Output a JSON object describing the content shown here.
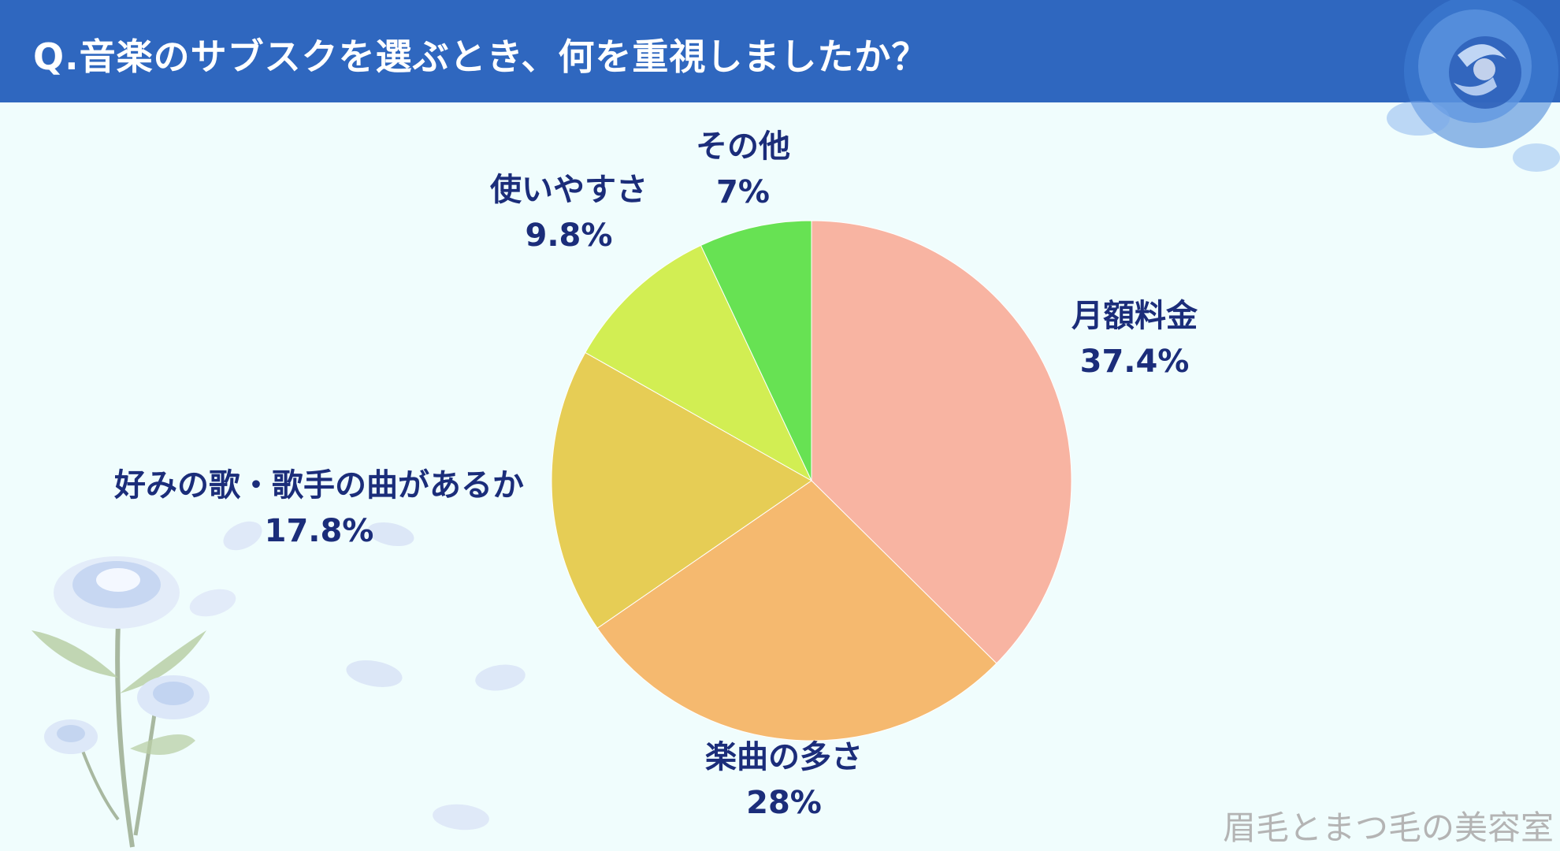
{
  "header": {
    "title": "Q.音楽のサブスクを選ぶとき、何を重視しましたか？"
  },
  "watermark": "眉毛とまつ毛の美容室",
  "colors": {
    "header_bg": "#2f67bf",
    "background": "#f0fdfd",
    "label_text": "#1b2d7a"
  },
  "chart_data": {
    "type": "pie",
    "title": "Q.音楽のサブスクを選ぶとき、何を重視しましたか？",
    "start_angle": "12 o'clock",
    "direction": "clockwise",
    "slices": [
      {
        "label": "月額料金",
        "value": 37.4,
        "display": "37.4%",
        "color": "#f8b4a2"
      },
      {
        "label": "楽曲の多さ",
        "value": 28,
        "display": "28%",
        "color": "#f5b96f"
      },
      {
        "label": "好みの歌・歌手の曲があるか",
        "value": 17.8,
        "display": "17.8%",
        "color": "#e6cd55"
      },
      {
        "label": "使いやすさ",
        "value": 9.8,
        "display": "9.8%",
        "color": "#d2ee53"
      },
      {
        "label": "その他",
        "value": 7,
        "display": "7%",
        "color": "#67e253"
      }
    ]
  }
}
